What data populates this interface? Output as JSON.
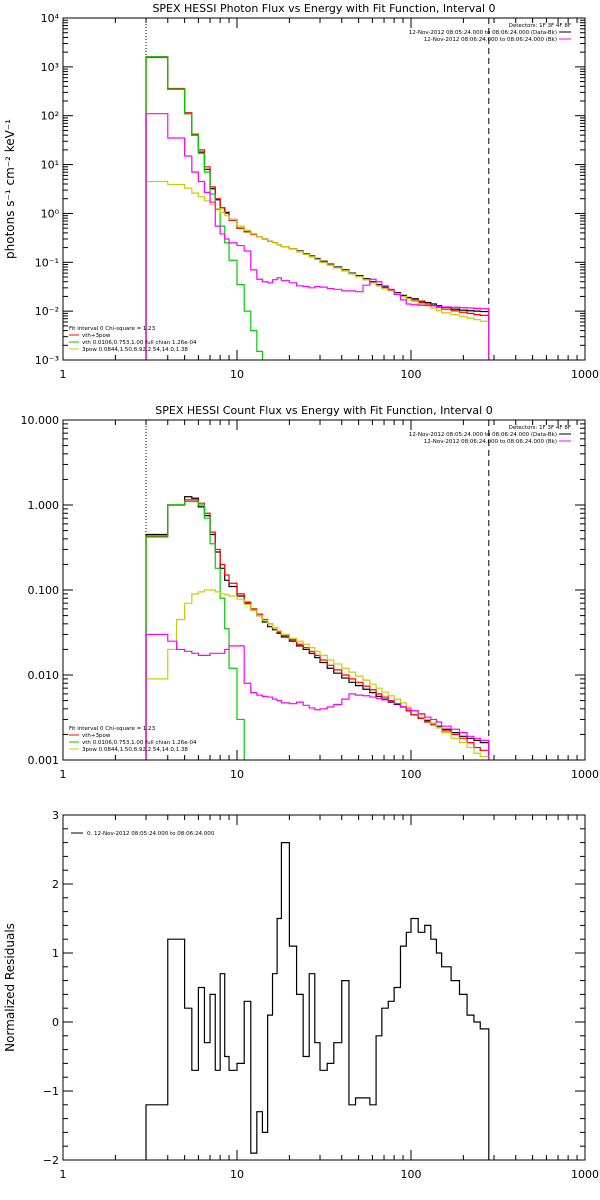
{
  "chart_data": [
    {
      "type": "line",
      "title": "SPEX HESSI Photon Flux vs Energy with Fit Function, Interval 0",
      "xlabel": "",
      "ylabel": "photons s⁻¹ cm⁻² keV⁻¹",
      "xscale": "log",
      "yscale": "log",
      "xlim": [
        1,
        1000
      ],
      "ylim": [
        0.001,
        10000
      ],
      "xticks": [
        1,
        10,
        100,
        1000
      ],
      "xtick_labels": [
        "1",
        "10",
        "100",
        "1000"
      ],
      "yticks": [
        0.001,
        0.01,
        0.1,
        1,
        10,
        100,
        1000,
        10000
      ],
      "ytick_labels": [
        "10⁻³",
        "10⁻²",
        "10⁻¹",
        "10⁰",
        "10¹",
        "10²",
        "10³",
        "10⁴"
      ],
      "vlines": [
        {
          "x": 3,
          "style": "dotted",
          "color": "#000000"
        },
        {
          "x": 280,
          "style": "dashed",
          "color": "#000000"
        }
      ],
      "header": {
        "detectors": "Detectors: 1F 3F 4F 8F",
        "line1": "12-Nov-2012 08:05:24.000 to 08:06:24.000 (Data-Bk)",
        "line2": "12-Nov-2012 08:06:24.000 to 08:06:24.000 (Bk)",
        "line1_color": "#000000",
        "line2_color": "#ff00ff"
      },
      "fit_info": {
        "title": "Fit Interval 0   Chi-square = 1.23",
        "entries": [
          {
            "label": "vth+3pow",
            "color": "#ff0000"
          },
          {
            "label": "vth 0.0106,0.753,1.00  full chian 1.26e-04",
            "color": "#00cc00"
          },
          {
            "label": "3pow 0.0844,1.50,8.92,2.54,14.0,1.38",
            "color": "#cccc00"
          }
        ]
      },
      "bin_edges": [
        3,
        3.5,
        4,
        4.5,
        5,
        5.5,
        6,
        6.5,
        7,
        7.5,
        8,
        8.5,
        9,
        10,
        11,
        12,
        13,
        14,
        15,
        16,
        17,
        18,
        20,
        22,
        24,
        26,
        28,
        30,
        33,
        36,
        40,
        44,
        48,
        53,
        58,
        63,
        68,
        74,
        80,
        87,
        94,
        100,
        110,
        120,
        130,
        140,
        150,
        170,
        190,
        210,
        230,
        250,
        280
      ],
      "series": [
        {
          "name": "Data-Bk",
          "color": "#000000",
          "values": [
            1600,
            1600,
            350,
            350,
            110,
            40,
            18,
            8,
            3.2,
            1.9,
            1.3,
            1.05,
            0.75,
            0.5,
            0.42,
            0.38,
            0.33,
            0.3,
            0.27,
            0.25,
            0.23,
            0.21,
            0.19,
            0.17,
            0.15,
            0.135,
            0.12,
            0.105,
            0.092,
            0.08,
            0.07,
            0.06,
            0.053,
            0.046,
            0.04,
            0.035,
            0.031,
            0.027,
            0.024,
            0.021,
            0.019,
            0.018,
            0.016,
            0.015,
            0.014,
            0.013,
            0.012,
            0.011,
            0.0105,
            0.0102,
            0.01,
            0.0098
          ]
        },
        {
          "name": "vth+3pow",
          "color": "#ff0000",
          "values": [
            1550,
            1550,
            360,
            360,
            115,
            42,
            20,
            9,
            3.5,
            2,
            1.3,
            1,
            0.72,
            0.5,
            0.42,
            0.37,
            0.33,
            0.3,
            0.27,
            0.25,
            0.23,
            0.21,
            0.19,
            0.165,
            0.145,
            0.13,
            0.115,
            0.1,
            0.088,
            0.077,
            0.067,
            0.058,
            0.051,
            0.044,
            0.038,
            0.033,
            0.029,
            0.026,
            0.023,
            0.02,
            0.018,
            0.017,
            0.015,
            0.014,
            0.013,
            0.012,
            0.011,
            0.0102,
            0.0095,
            0.009,
            0.0085,
            0.0082
          ]
        },
        {
          "name": "vth",
          "color": "#00cc00",
          "values": [
            1600,
            1600,
            350,
            350,
            110,
            40,
            17,
            7,
            2.5,
            1.2,
            0.55,
            0.25,
            0.11,
            0.035,
            0.01,
            0.004,
            0.0015,
            0.0009
          ]
        },
        {
          "name": "3pow",
          "color": "#cccc00",
          "values": [
            4.5,
            4.5,
            3.9,
            3.9,
            3.3,
            2.6,
            2.2,
            1.8,
            1.5,
            1.25,
            1.05,
            0.9,
            0.75,
            0.55,
            0.45,
            0.38,
            0.33,
            0.3,
            0.27,
            0.25,
            0.23,
            0.21,
            0.19,
            0.165,
            0.145,
            0.13,
            0.115,
            0.1,
            0.088,
            0.077,
            0.067,
            0.058,
            0.051,
            0.044,
            0.038,
            0.033,
            0.029,
            0.026,
            0.023,
            0.02,
            0.018,
            0.016,
            0.014,
            0.013,
            0.0115,
            0.0102,
            0.0092,
            0.0085,
            0.0078,
            0.0072,
            0.0067,
            0.0062
          ]
        },
        {
          "name": "Bk",
          "color": "#ff00ff",
          "values": [
            110,
            110,
            35,
            35,
            15,
            7,
            4.5,
            2.7,
            1.7,
            0.55,
            0.38,
            0.3,
            0.25,
            0.22,
            0.17,
            0.07,
            0.045,
            0.04,
            0.038,
            0.044,
            0.048,
            0.042,
            0.038,
            0.033,
            0.032,
            0.03,
            0.032,
            0.031,
            0.029,
            0.028,
            0.026,
            0.026,
            0.025,
            0.034,
            0.045,
            0.04,
            0.033,
            0.028,
            0.022,
            0.017,
            0.014,
            0.0135,
            0.0132,
            0.013,
            0.0128,
            0.0125,
            0.0122,
            0.012,
            0.0118,
            0.0116,
            0.0114,
            0.0112
          ]
        }
      ]
    },
    {
      "type": "line",
      "title": "SPEX HESSI Count Flux vs Energy with Fit Function, Interval 0",
      "xlabel": "",
      "ylabel": "",
      "xscale": "log",
      "yscale": "log",
      "xlim": [
        1,
        1000
      ],
      "ylim": [
        0.001,
        10
      ],
      "xticks": [
        1,
        10,
        100,
        1000
      ],
      "xtick_labels": [
        "1",
        "10",
        "100",
        "1000"
      ],
      "yticks": [
        0.001,
        0.01,
        0.1,
        1,
        10
      ],
      "ytick_labels": [
        "0.001",
        "0.010",
        "0.100",
        "1.000",
        "10.000"
      ],
      "vlines": [
        {
          "x": 3,
          "style": "dotted",
          "color": "#000000"
        },
        {
          "x": 280,
          "style": "dashed",
          "color": "#000000"
        }
      ],
      "header": {
        "detectors": "Detectors: 1F 3F 4F 8F",
        "line1": "12-Nov-2012 08:05:24.000 to 08:06:24.000 (Data-Bk)",
        "line2": "12-Nov-2012 08:06:24.000 to 08:06:24.000 (Bk)",
        "line1_color": "#000000",
        "line2_color": "#ff00ff"
      },
      "fit_info": {
        "title": "Fit Interval 0   Chi-square = 1.23",
        "entries": [
          {
            "label": "vth+3pow",
            "color": "#ff0000"
          },
          {
            "label": "vth 0.0106,0.753,1.00  full chian 1.26e-04",
            "color": "#00cc00"
          },
          {
            "label": "3pow 0.0844,1.50,8.92,2.54,14.0,1.38",
            "color": "#cccc00"
          }
        ]
      },
      "bin_edges": [
        3,
        3.5,
        4,
        4.5,
        5,
        5.5,
        6,
        6.5,
        7,
        7.5,
        8,
        8.5,
        9,
        10,
        11,
        12,
        13,
        14,
        15,
        16,
        17,
        18,
        20,
        22,
        24,
        26,
        28,
        30,
        33,
        36,
        40,
        44,
        48,
        53,
        58,
        63,
        68,
        74,
        80,
        87,
        94,
        100,
        110,
        120,
        130,
        140,
        150,
        170,
        190,
        210,
        230,
        250,
        280
      ],
      "series": [
        {
          "name": "Data-Bk",
          "color": "#000000",
          "values": [
            0.45,
            0.45,
            1.0,
            1.0,
            1.25,
            1.2,
            0.95,
            0.75,
            0.45,
            0.28,
            0.18,
            0.13,
            0.11,
            0.085,
            0.07,
            0.058,
            0.05,
            0.042,
            0.037,
            0.034,
            0.031,
            0.028,
            0.025,
            0.022,
            0.02,
            0.018,
            0.016,
            0.014,
            0.012,
            0.0105,
            0.0092,
            0.0082,
            0.0075,
            0.0068,
            0.0062,
            0.0056,
            0.0052,
            0.0048,
            0.0045,
            0.0042,
            0.0038,
            0.0034,
            0.0031,
            0.0029,
            0.0027,
            0.0025,
            0.0023,
            0.0021,
            0.0019,
            0.0018,
            0.0017,
            0.0016
          ]
        },
        {
          "name": "vth+3pow",
          "color": "#ff0000",
          "values": [
            0.43,
            0.43,
            1.0,
            1.0,
            1.15,
            1.15,
            1.05,
            0.8,
            0.48,
            0.3,
            0.2,
            0.15,
            0.12,
            0.09,
            0.072,
            0.06,
            0.052,
            0.045,
            0.04,
            0.036,
            0.032,
            0.029,
            0.026,
            0.023,
            0.021,
            0.019,
            0.017,
            0.015,
            0.013,
            0.0115,
            0.01,
            0.009,
            0.0082,
            0.0074,
            0.0067,
            0.006,
            0.0055,
            0.005,
            0.0046,
            0.0042,
            0.0038,
            0.0034,
            0.0031,
            0.0028,
            0.0026,
            0.0024,
            0.0022,
            0.002,
            0.0018,
            0.0016,
            0.0014,
            0.0013
          ]
        },
        {
          "name": "vth",
          "color": "#00cc00",
          "values": [
            0.42,
            0.42,
            1.0,
            1.0,
            1.1,
            1.1,
            1.0,
            0.7,
            0.35,
            0.18,
            0.08,
            0.035,
            0.012,
            0.003,
            0.0008
          ]
        },
        {
          "name": "3pow",
          "color": "#cccc00",
          "values": [
            0.009,
            0.009,
            0.02,
            0.045,
            0.07,
            0.09,
            0.095,
            0.1,
            0.1,
            0.095,
            0.09,
            0.088,
            0.085,
            0.078,
            0.068,
            0.058,
            0.05,
            0.044,
            0.04,
            0.036,
            0.033,
            0.03,
            0.027,
            0.025,
            0.023,
            0.021,
            0.019,
            0.017,
            0.015,
            0.0135,
            0.012,
            0.0108,
            0.0097,
            0.0087,
            0.0078,
            0.007,
            0.0063,
            0.0057,
            0.0052,
            0.0047,
            0.0042,
            0.0038,
            0.0034,
            0.003,
            0.0027,
            0.0024,
            0.0021,
            0.0018,
            0.0016,
            0.0014,
            0.0012,
            0.0011
          ]
        },
        {
          "name": "Bk",
          "color": "#ff00ff",
          "values": [
            0.03,
            0.03,
            0.025,
            0.02,
            0.019,
            0.018,
            0.017,
            0.017,
            0.018,
            0.018,
            0.018,
            0.02,
            0.022,
            0.022,
            0.008,
            0.0062,
            0.0058,
            0.0056,
            0.0055,
            0.0052,
            0.005,
            0.0047,
            0.0046,
            0.0048,
            0.0044,
            0.0041,
            0.0039,
            0.004,
            0.0042,
            0.0045,
            0.0052,
            0.006,
            0.0058,
            0.0057,
            0.0055,
            0.0053,
            0.0051,
            0.0049,
            0.0046,
            0.0042,
            0.004,
            0.0038,
            0.0035,
            0.0032,
            0.003,
            0.0028,
            0.0025,
            0.0023,
            0.0021,
            0.0019,
            0.0018,
            0.0017
          ]
        }
      ]
    },
    {
      "type": "line",
      "title": "",
      "xlabel": "",
      "ylabel": "Normalized Residuals",
      "xscale": "log",
      "yscale": "linear",
      "xlim": [
        1,
        1000
      ],
      "ylim": [
        -2,
        3
      ],
      "xticks": [
        1,
        10,
        100,
        1000
      ],
      "xtick_labels": [
        "1",
        "10",
        "100",
        "1000"
      ],
      "yticks": [
        -2,
        -1,
        0,
        1,
        2,
        3
      ],
      "ytick_labels": [
        "−2",
        "−1",
        "0",
        "1",
        "2",
        "3"
      ],
      "legend": {
        "label": "0. 12-Nov-2012 08:05:24.000 to 08:06:24.000",
        "color": "#000000",
        "position": "top-left"
      },
      "bin_edges": [
        3,
        3.5,
        4,
        4.5,
        5,
        5.5,
        6,
        6.5,
        7,
        7.5,
        8,
        8.5,
        9,
        10,
        11,
        12,
        13,
        14,
        15,
        16,
        17,
        18,
        20,
        22,
        24,
        26,
        28,
        30,
        33,
        36,
        40,
        44,
        48,
        53,
        58,
        63,
        68,
        74,
        80,
        87,
        94,
        100,
        110,
        120,
        130,
        140,
        150,
        170,
        190,
        210,
        230,
        250,
        280
      ],
      "series": [
        {
          "name": "",
          "color": "#000000",
          "values": [
            -1.2,
            -1.2,
            1.2,
            1.2,
            0.2,
            -0.7,
            0.5,
            -0.3,
            0.4,
            -0.7,
            0.7,
            -0.5,
            -0.7,
            -0.6,
            0.3,
            -1.9,
            -1.3,
            -1.6,
            0.1,
            0.7,
            1.5,
            2.6,
            1.1,
            0.4,
            -0.5,
            0.7,
            -0.3,
            -0.7,
            -0.6,
            -0.3,
            0.6,
            -1.2,
            -1.1,
            -1.1,
            -1.2,
            -0.2,
            0.2,
            0.3,
            0.5,
            1.1,
            1.3,
            1.5,
            1.3,
            1.4,
            1.2,
            1.0,
            0.8,
            0.6,
            0.4,
            0.1,
            0.0,
            -0.1
          ]
        }
      ]
    }
  ]
}
